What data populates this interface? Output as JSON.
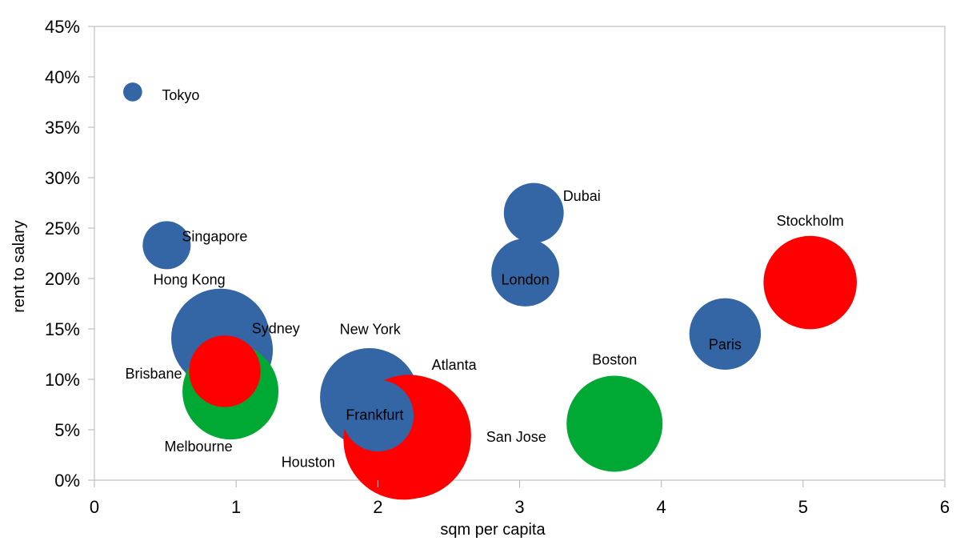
{
  "chart_data": {
    "type": "bubble",
    "xlabel": "sqm per capita",
    "ylabel": "rent to salary",
    "xlim": [
      0,
      6
    ],
    "ylim": [
      0,
      45
    ],
    "x_ticks": [
      "0",
      "1",
      "2",
      "3",
      "4",
      "5",
      "6"
    ],
    "y_ticks": [
      "0%",
      "5%",
      "10%",
      "15%",
      "20%",
      "25%",
      "30%",
      "35%",
      "40%",
      "45%"
    ],
    "grid": false,
    "legend": "none",
    "colors": {
      "blue": "#3465a4",
      "red": "#ff0000",
      "green": "#00a933"
    },
    "points": [
      {
        "label": "Tokyo",
        "x": 0.27,
        "y": 38.5,
        "size": 1.4,
        "color": "#3465a4"
      },
      {
        "label": "Singapore",
        "x": 0.51,
        "y": 23.3,
        "size": 9,
        "color": "#3465a4"
      },
      {
        "label": "Hong Kong",
        "x": 0.89,
        "y": 14.1,
        "size": 38,
        "color": "#3465a4"
      },
      {
        "label": "Sydney",
        "x": 0.93,
        "y": 12.9,
        "size": 34,
        "color": "#3465a4"
      },
      {
        "label": "Melbourne",
        "x": 0.96,
        "y": 8.8,
        "size": 36,
        "color": "#00a933"
      },
      {
        "label": "Brisbane",
        "x": 0.92,
        "y": 10.8,
        "size": 20,
        "color": "#ff0000"
      },
      {
        "label": "New York",
        "x": 1.94,
        "y": 8.2,
        "size": 38,
        "color": "#3465a4"
      },
      {
        "label": "Houston",
        "x": 2.18,
        "y": 4.0,
        "size": 56,
        "color": "#ff0000"
      },
      {
        "label": "Atlanta",
        "x": 2.25,
        "y": 4.6,
        "size": 52,
        "color": "#ff0000"
      },
      {
        "label": "San Jose",
        "x": 2.22,
        "y": 4.3,
        "size": 60,
        "color": "#ff0000"
      },
      {
        "label": "Frankfurt",
        "x": 2.0,
        "y": 6.4,
        "size": 20,
        "color": "#3465a4"
      },
      {
        "label": "Dubai",
        "x": 3.1,
        "y": 26.5,
        "size": 14,
        "color": "#3465a4"
      },
      {
        "label": "London",
        "x": 3.04,
        "y": 20.6,
        "size": 18,
        "color": "#3465a4"
      },
      {
        "label": "Paris",
        "x": 4.45,
        "y": 14.5,
        "size": 20,
        "color": "#3465a4"
      },
      {
        "label": "Stockholm",
        "x": 5.05,
        "y": 19.6,
        "size": 34,
        "color": "#ff0000"
      },
      {
        "label": "Boston",
        "x": 3.67,
        "y": 5.6,
        "size": 36,
        "color": "#00a933"
      }
    ]
  }
}
